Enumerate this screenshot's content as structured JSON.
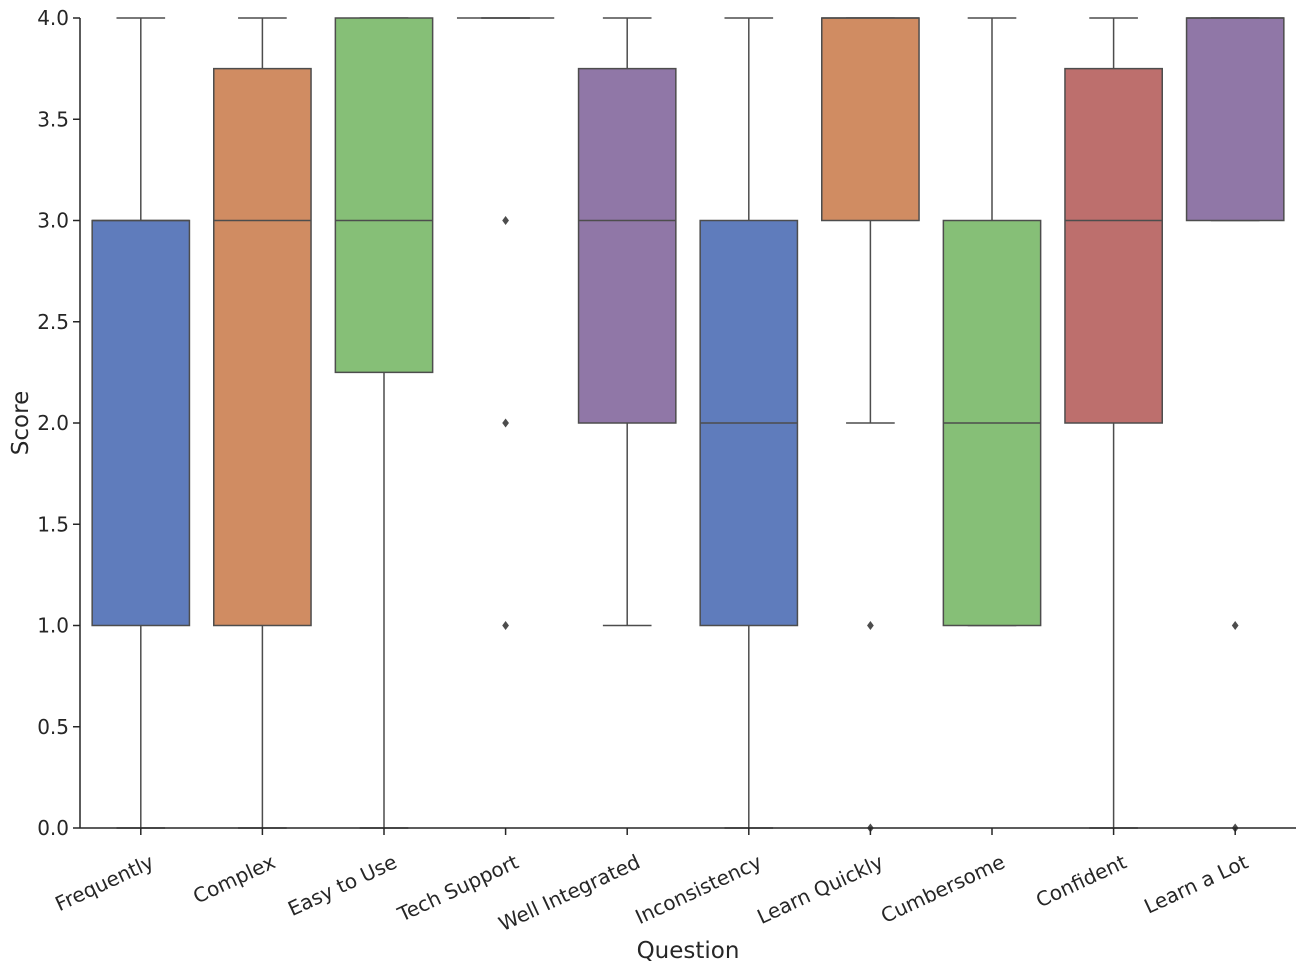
{
  "chart_data": {
    "type": "box",
    "xlabel": "Question",
    "ylabel": "Score",
    "ylim": [
      0,
      4
    ],
    "yticks": [
      "0.0",
      "0.5",
      "1.0",
      "1.5",
      "2.0",
      "2.5",
      "3.0",
      "3.5",
      "4.0"
    ],
    "grid": false,
    "categories": [
      "Frequently",
      "Complex",
      "Easy to Use",
      "Tech Support",
      "Well Integrated",
      "Inconsistency",
      "Learn Quickly",
      "Cumbersome",
      "Confident",
      "Learn a Lot"
    ],
    "colors": [
      "#5f7cbc",
      "#d08c62",
      "#86bf77",
      "#5f7cbc",
      "#9077a7",
      "#5f7cbc",
      "#d08c62",
      "#86bf77",
      "#bd6f6d",
      "#9077a7"
    ],
    "boxes": [
      {
        "category": "Frequently",
        "whisker_low": 0,
        "q1": 1,
        "median": 3,
        "q3": 3,
        "whisker_high": 4,
        "outliers": []
      },
      {
        "category": "Complex",
        "whisker_low": 0,
        "q1": 1,
        "median": 3,
        "q3": 3.75,
        "whisker_high": 4,
        "outliers": []
      },
      {
        "category": "Easy to Use",
        "whisker_low": 0,
        "q1": 2.25,
        "median": 3,
        "q3": 4,
        "whisker_high": 4,
        "outliers": []
      },
      {
        "category": "Tech Support",
        "whisker_low": 4,
        "q1": 4,
        "median": 4,
        "q3": 4,
        "whisker_high": 4,
        "outliers": [
          3,
          2,
          1
        ]
      },
      {
        "category": "Well Integrated",
        "whisker_low": 1,
        "q1": 2,
        "median": 3,
        "q3": 3.75,
        "whisker_high": 4,
        "outliers": []
      },
      {
        "category": "Inconsistency",
        "whisker_low": 0,
        "q1": 1,
        "median": 2,
        "q3": 3,
        "whisker_high": 4,
        "outliers": []
      },
      {
        "category": "Learn Quickly",
        "whisker_low": 2,
        "q1": 3,
        "median": 4,
        "q3": 4,
        "whisker_high": 4,
        "outliers": [
          1,
          0
        ]
      },
      {
        "category": "Cumbersome",
        "whisker_low": 1,
        "q1": 1,
        "median": 2,
        "q3": 3,
        "whisker_high": 4,
        "outliers": []
      },
      {
        "category": "Confident",
        "whisker_low": 0,
        "q1": 2,
        "median": 3,
        "q3": 3.75,
        "whisker_high": 4,
        "outliers": []
      },
      {
        "category": "Learn a Lot",
        "whisker_low": 3,
        "q1": 3,
        "median": 4,
        "q3": 4,
        "whisker_high": 4,
        "outliers": [
          1,
          0
        ]
      }
    ]
  }
}
